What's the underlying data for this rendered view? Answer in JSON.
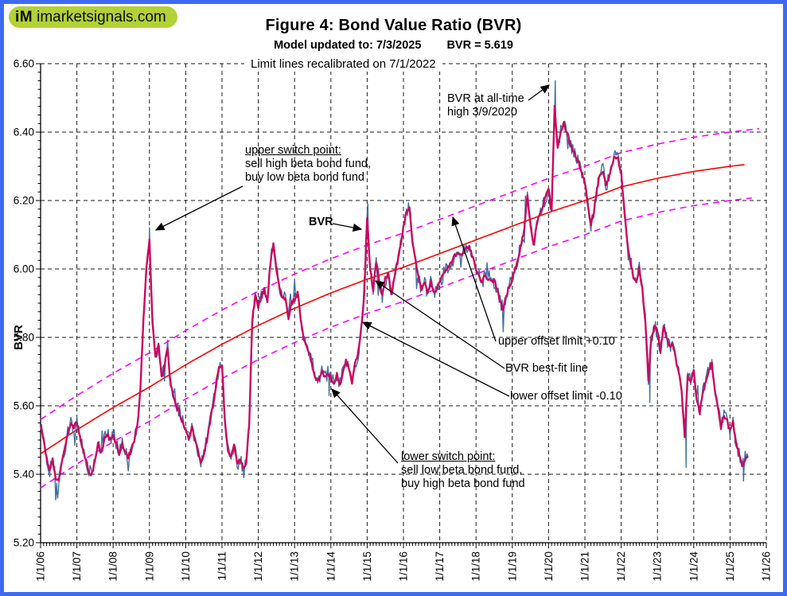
{
  "logo": {
    "mark": "iM",
    "site": "imarketsignals.com",
    "bg_color": "#b2d235"
  },
  "header": {
    "title": "Figure 4: Bond Value Ratio (BVR)",
    "model_updated": "Model updated to: 7/3/2025",
    "current_bvr": "BVR = 5.619"
  },
  "note": "Limit lines recalibrated on 7/1/2022",
  "annotations": {
    "upper_switch": {
      "title": "upper switch point:",
      "line2": "sell high beta bond fund,",
      "line3": "buy low beta bond fund"
    },
    "bvr_series_label": "BVR",
    "all_time_high": {
      "line1": "BVR at all-time",
      "line2": "high 3/9/2020"
    },
    "upper_offset": "upper offset limit +0.10",
    "best_fit": "BVR best-fit line",
    "lower_offset": "lower offset limit -0.10",
    "lower_switch": {
      "title": "lower switch point:",
      "line2": "sell low beta bond fund,",
      "line3": "buy high beta bond fund"
    }
  },
  "chart_data": {
    "type": "line",
    "title": "Figure 4: Bond Value Ratio (BVR)",
    "xlabel": "",
    "ylabel": "BVR",
    "ylim": [
      5.2,
      6.6
    ],
    "y_tick_step": 0.2,
    "y_minor_step": 0.025,
    "x_tick_labels": [
      "1/1/06",
      "1/1/07",
      "1/1/08",
      "1/1/09",
      "1/1/10",
      "1/1/11",
      "1/1/12",
      "1/1/13",
      "1/1/14",
      "1/1/15",
      "1/1/16",
      "1/1/17",
      "1/1/18",
      "1/1/19",
      "1/1/20",
      "1/1/21",
      "1/1/22",
      "1/1/23",
      "1/1/24",
      "1/1/25",
      "1/1/26"
    ],
    "x_start_year": 2006,
    "x_end_year": 2026,
    "grid": "dashed",
    "colors": {
      "daily": "#3E6FA3",
      "smoothed": "#C8095F",
      "best_fit": "#FF0000",
      "limits": "#FF00FF",
      "grid": "#1a1a1a"
    },
    "series": [
      {
        "name": "BVR (smoothed, monthly approximation)",
        "color": "#C8095F",
        "start": "2006-01",
        "end": "2025-07",
        "values": [
          5.55,
          5.5,
          5.45,
          5.41,
          5.44,
          5.39,
          5.38,
          5.43,
          5.47,
          5.52,
          5.55,
          5.54,
          5.55,
          5.51,
          5.47,
          5.44,
          5.41,
          5.4,
          5.44,
          5.49,
          5.46,
          5.5,
          5.52,
          5.5,
          5.52,
          5.49,
          5.46,
          5.49,
          5.47,
          5.45,
          5.47,
          5.5,
          5.54,
          5.65,
          5.85,
          6.0,
          6.08,
          5.85,
          5.74,
          5.78,
          5.68,
          5.72,
          5.77,
          5.66,
          5.62,
          5.6,
          5.58,
          5.55,
          5.53,
          5.5,
          5.54,
          5.5,
          5.47,
          5.44,
          5.46,
          5.5,
          5.55,
          5.6,
          5.66,
          5.71,
          5.72,
          5.55,
          5.47,
          5.45,
          5.48,
          5.43,
          5.44,
          5.42,
          5.43,
          5.55,
          5.85,
          5.92,
          5.89,
          5.92,
          5.94,
          5.9,
          6.02,
          6.07,
          6.0,
          5.95,
          5.91,
          5.92,
          5.86,
          5.9,
          5.91,
          5.93,
          5.86,
          5.8,
          5.77,
          5.75,
          5.71,
          5.68,
          5.67,
          5.7,
          5.68,
          5.7,
          5.68,
          5.66,
          5.69,
          5.66,
          5.7,
          5.73,
          5.71,
          5.67,
          5.72,
          5.75,
          5.82,
          5.92,
          6.15,
          6.0,
          5.94,
          6.02,
          5.96,
          5.92,
          5.97,
          5.99,
          5.92,
          5.98,
          6.02,
          6.07,
          6.12,
          6.17,
          6.18,
          6.08,
          6.02,
          5.97,
          5.94,
          5.96,
          5.93,
          5.96,
          5.93,
          5.94,
          5.96,
          5.98,
          6.0,
          6.01,
          6.02,
          6.04,
          6.05,
          6.04,
          6.05,
          6.06,
          6.06,
          6.03,
          6.0,
          5.98,
          5.96,
          5.98,
          5.97,
          5.96,
          5.97,
          5.94,
          5.91,
          5.88,
          5.92,
          5.95,
          5.97,
          6.0,
          6.03,
          6.07,
          6.12,
          6.21,
          6.13,
          6.07,
          6.12,
          6.16,
          6.18,
          6.21,
          6.23,
          6.17,
          6.47,
          6.36,
          6.4,
          6.43,
          6.4,
          6.37,
          6.35,
          6.33,
          6.31,
          6.28,
          6.25,
          6.19,
          6.13,
          6.17,
          6.23,
          6.28,
          6.29,
          6.24,
          6.27,
          6.31,
          6.33,
          6.32,
          6.28,
          6.18,
          6.08,
          6.02,
          5.98,
          5.96,
          6.0,
          5.94,
          5.85,
          5.68,
          5.8,
          5.83,
          5.82,
          5.76,
          5.83,
          5.8,
          5.77,
          5.78,
          5.74,
          5.7,
          5.64,
          5.51,
          5.69,
          5.67,
          5.7,
          5.62,
          5.58,
          5.64,
          5.67,
          5.71,
          5.72,
          5.64,
          5.59,
          5.54,
          5.57,
          5.56,
          5.53,
          5.55,
          5.49,
          5.46,
          5.42,
          5.44,
          5.45
        ]
      },
      {
        "name": "BVR (daily, volatile trace)",
        "color": "#3E6FA3",
        "daily_extremes": [
          [
            2006.45,
            5.35
          ],
          [
            2009.0,
            6.12
          ],
          [
            2011.6,
            5.39
          ],
          [
            2013.95,
            5.63
          ],
          [
            2015.02,
            6.19
          ],
          [
            2020.185,
            6.55
          ],
          [
            2022.79,
            5.61
          ],
          [
            2023.79,
            5.42
          ],
          [
            2025.37,
            5.38
          ]
        ]
      },
      {
        "name": "BVR best-fit line",
        "color": "#FF0000",
        "points_by_year": [
          [
            2006,
            5.46
          ],
          [
            2007,
            5.53
          ],
          [
            2008,
            5.595
          ],
          [
            2009,
            5.655
          ],
          [
            2010,
            5.72
          ],
          [
            2011,
            5.78
          ],
          [
            2012,
            5.835
          ],
          [
            2013,
            5.885
          ],
          [
            2014,
            5.93
          ],
          [
            2015,
            5.97
          ],
          [
            2016,
            6.005
          ],
          [
            2017,
            6.045
          ],
          [
            2018,
            6.085
          ],
          [
            2019,
            6.125
          ],
          [
            2020,
            6.165
          ],
          [
            2021,
            6.2
          ],
          [
            2022,
            6.24
          ],
          [
            2023,
            6.265
          ],
          [
            2024,
            6.285
          ],
          [
            2025,
            6.3
          ],
          [
            2025.8,
            6.31
          ]
        ]
      },
      {
        "name": "upper offset limit",
        "color": "#FF00FF",
        "dashed": true,
        "offset_from_best_fit": 0.1
      },
      {
        "name": "lower offset limit",
        "color": "#FF00FF",
        "dashed": true,
        "offset_from_best_fit": -0.1
      }
    ],
    "all_time_high": {
      "date": "3/9/2020",
      "x_year": 2020.185,
      "value": 6.55
    }
  }
}
